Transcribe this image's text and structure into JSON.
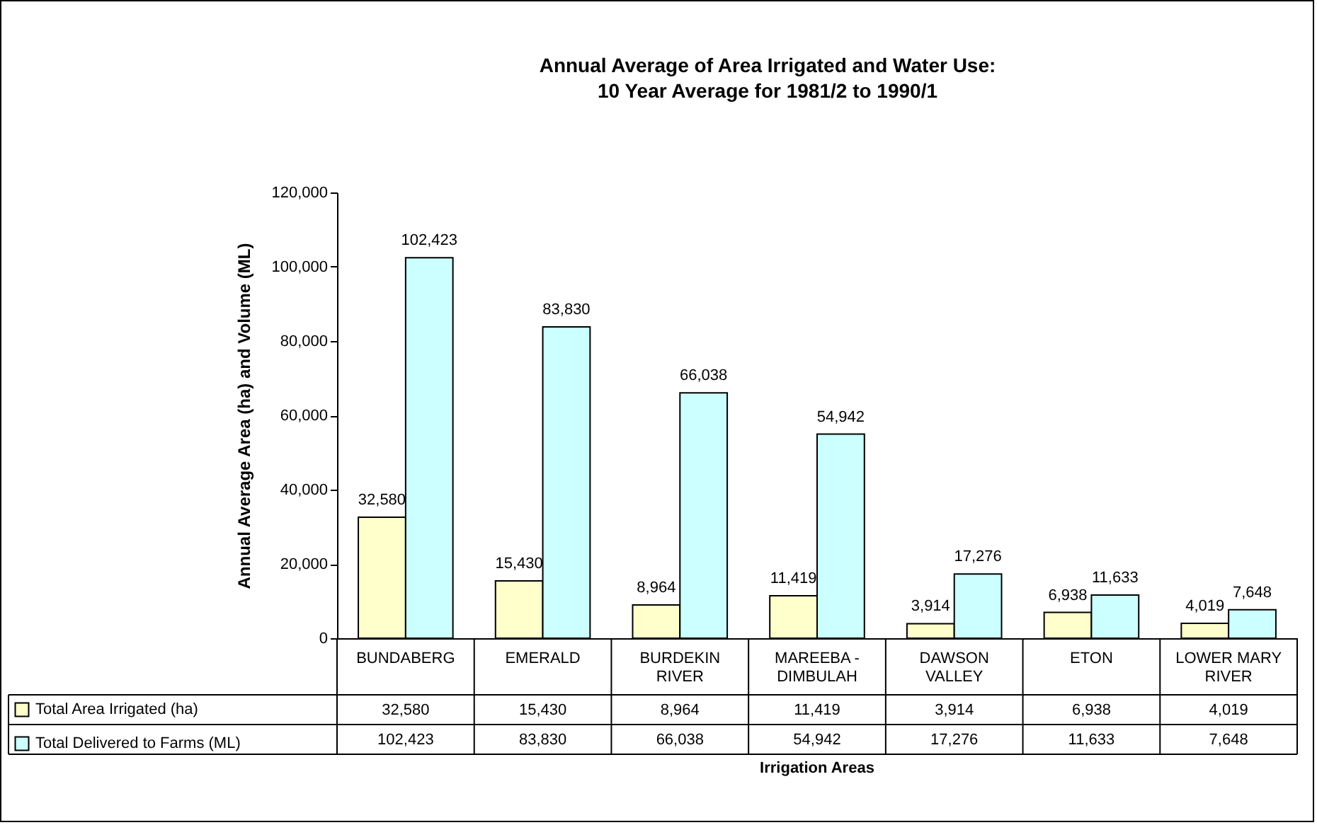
{
  "chart_data": {
    "type": "bar",
    "title": "Annual Average of Area Irrigated and Water Use:",
    "subtitle": "10 Year Average for 1981/2 to 1990/1",
    "ylabel": "Annual Average Area (ha) and Volume (ML)",
    "annotations": [
      "Irrigation Areas"
    ],
    "categories": [
      "BUNDABERG",
      "EMERALD",
      "BURDEKIN RIVER",
      "MAREEBA - DIMBULAH",
      "DAWSON VALLEY",
      "ETON",
      "LOWER MARY RIVER"
    ],
    "series": [
      {
        "name": "Total Area Irrigated (ha)",
        "color": "#ffffcc",
        "values": [
          32580,
          15430,
          8964,
          11419,
          3914,
          6938,
          4019
        ],
        "value_labels": [
          "32,580",
          "15,430",
          "8,964",
          "11,419",
          "3,914",
          "6,938",
          "4,019"
        ]
      },
      {
        "name": "Total Delivered to Farms (ML)",
        "color": "#ccffff",
        "values": [
          102423,
          83830,
          66038,
          54942,
          17276,
          11633,
          7648
        ],
        "value_labels": [
          "102,423",
          "83,830",
          "66,038",
          "54,942",
          "17,276",
          "11,633",
          "7,648"
        ]
      }
    ],
    "ylim": [
      0,
      120000
    ],
    "yticks": [
      0,
      {
        "value": 20000,
        "label": "20,000"
      },
      {
        "value": 40000,
        "label": "40,000"
      },
      {
        "value": 60000,
        "label": "60,000"
      },
      {
        "value": 80000,
        "label": "80,000"
      },
      {
        "value": 100000,
        "label": "100,000"
      },
      {
        "value": 120000,
        "label": "120,000"
      }
    ],
    "legend": "bottom left",
    "grid": false
  }
}
